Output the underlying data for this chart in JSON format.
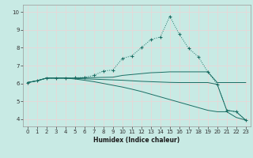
{
  "xlabel": "Humidex (Indice chaleur)",
  "background_color": "#c8eae4",
  "grid_color": "#e8d8d8",
  "line_color": "#1a6e64",
  "xlim": [
    -0.5,
    23.5
  ],
  "ylim": [
    3.6,
    10.4
  ],
  "xticks": [
    0,
    1,
    2,
    3,
    4,
    5,
    6,
    7,
    8,
    9,
    10,
    11,
    12,
    13,
    14,
    15,
    16,
    17,
    18,
    19,
    20,
    21,
    22,
    23
  ],
  "yticks": [
    4,
    5,
    6,
    7,
    8,
    9,
    10
  ],
  "lines": [
    {
      "x": [
        0,
        1,
        2,
        3,
        4,
        5,
        6,
        7,
        8,
        9,
        10,
        11,
        12,
        13,
        14,
        15,
        16,
        17,
        18,
        19,
        20,
        21,
        22,
        23
      ],
      "y": [
        6.05,
        6.15,
        6.3,
        6.3,
        6.3,
        6.3,
        6.32,
        6.33,
        6.34,
        6.35,
        6.45,
        6.5,
        6.55,
        6.6,
        6.62,
        6.65,
        6.65,
        6.65,
        6.65,
        6.65,
        6.05,
        6.05,
        6.05,
        6.05
      ],
      "marker": null,
      "style": "-"
    },
    {
      "x": [
        0,
        1,
        2,
        3,
        4,
        5,
        6,
        7,
        8,
        9,
        10,
        11,
        12,
        13,
        14,
        15,
        16,
        17,
        18,
        19,
        20,
        21,
        22,
        23
      ],
      "y": [
        6.05,
        6.15,
        6.3,
        6.3,
        6.3,
        6.25,
        6.18,
        6.1,
        6.0,
        5.9,
        5.8,
        5.68,
        5.55,
        5.4,
        5.25,
        5.1,
        4.95,
        4.8,
        4.65,
        4.5,
        4.42,
        4.42,
        4.1,
        3.95
      ],
      "marker": null,
      "style": "-"
    },
    {
      "x": [
        0,
        1,
        2,
        3,
        4,
        5,
        6,
        7,
        8,
        9,
        10,
        11,
        12,
        13,
        14,
        15,
        16,
        17,
        18,
        19,
        20,
        21,
        22,
        23
      ],
      "y": [
        6.05,
        6.15,
        6.3,
        6.3,
        6.3,
        6.32,
        6.34,
        6.45,
        6.7,
        6.75,
        7.4,
        7.55,
        8.0,
        8.45,
        8.6,
        9.75,
        8.75,
        7.95,
        7.5,
        6.65,
        5.95,
        4.5,
        4.42,
        3.95
      ],
      "marker": "+",
      "style": "-",
      "dotted": true
    },
    {
      "x": [
        0,
        1,
        2,
        3,
        4,
        5,
        6,
        7,
        8,
        9,
        10,
        11,
        12,
        13,
        14,
        15,
        16,
        17,
        18,
        19,
        20,
        21,
        22,
        23
      ],
      "y": [
        6.05,
        6.15,
        6.3,
        6.3,
        6.3,
        6.28,
        6.26,
        6.24,
        6.22,
        6.2,
        6.18,
        6.15,
        6.12,
        6.1,
        6.08,
        6.06,
        6.05,
        6.05,
        6.05,
        6.05,
        5.95,
        4.5,
        4.42,
        3.95
      ],
      "marker": null,
      "style": "-"
    }
  ]
}
